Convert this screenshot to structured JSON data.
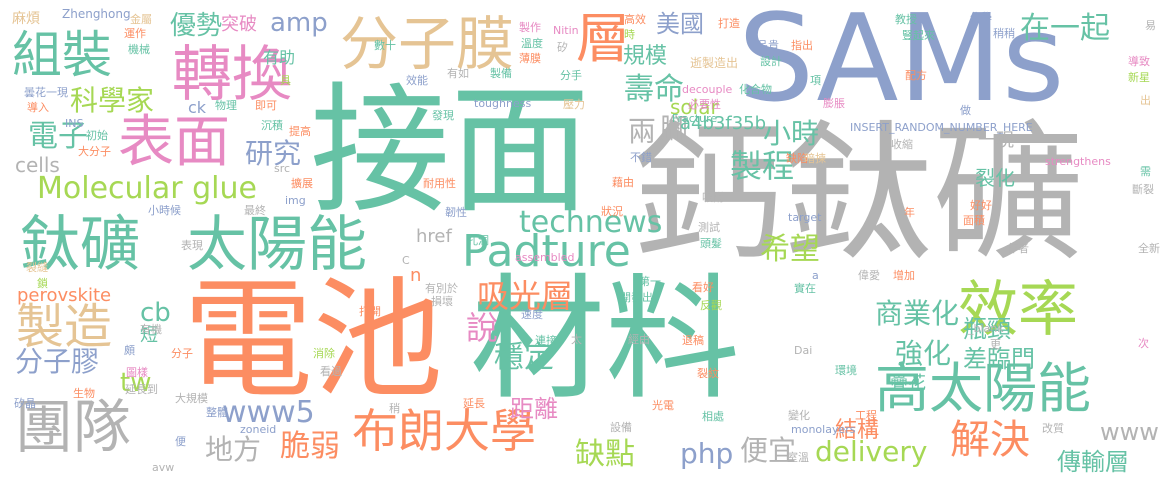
{
  "words": [
    {
      "text": "接面",
      "color": "#66c2a5"
    },
    {
      "text": "電池",
      "color": "#fc8d62"
    },
    {
      "text": "材料",
      "color": "#66c2a5"
    },
    {
      "text": "鈣鈦礦",
      "color": "#b3b3b3"
    },
    {
      "text": "SAMs",
      "color": "#8da0cb"
    },
    {
      "text": "表面",
      "color": "#e78ac3"
    },
    {
      "text": "轉換",
      "color": "#e78ac3"
    },
    {
      "text": "分子膜",
      "color": "#e5c494"
    },
    {
      "text": "組裝",
      "color": "#66c2a5"
    },
    {
      "text": "層",
      "color": "#fc8d62"
    },
    {
      "text": "鈦礦",
      "color": "#66c2a5"
    },
    {
      "text": "太陽能",
      "color": "#66c2a5"
    },
    {
      "text": "Molecular glue",
      "color": "#a6d854"
    },
    {
      "text": "Padture",
      "color": "#66c2a5"
    },
    {
      "text": "效率",
      "color": "#a6d854"
    },
    {
      "text": "高太陽能",
      "color": "#66c2a5"
    },
    {
      "text": "團隊",
      "color": "#b3b3b3"
    },
    {
      "text": "布朗大學",
      "color": "#fc8d62"
    },
    {
      "text": "製造",
      "color": "#e5c494"
    },
    {
      "text": "解決",
      "color": "#fc8d62"
    },
    {
      "text": "優勢",
      "color": "#66c2a5"
    },
    {
      "text": "amp",
      "color": "#8da0cb"
    },
    {
      "text": "在一起",
      "color": "#66c2a5"
    },
    {
      "text": "美國",
      "color": "#8da0cb"
    },
    {
      "text": "壽命",
      "color": "#66c2a5"
    },
    {
      "text": "科學家",
      "color": "#a6d854"
    },
    {
      "text": "電子",
      "color": "#66c2a5"
    },
    {
      "text": "研究",
      "color": "#8da0cb"
    },
    {
      "text": "製程",
      "color": "#66c2a5"
    },
    {
      "text": "小時",
      "color": "#66c2a5"
    },
    {
      "text": "兩",
      "color": "#b3b3b3"
    },
    {
      "text": "腳",
      "color": "#b3b3b3"
    },
    {
      "text": "technews",
      "color": "#66c2a5"
    },
    {
      "text": "希望",
      "color": "#a6d854"
    },
    {
      "text": "吸光層",
      "color": "#fc8d62"
    },
    {
      "text": "說",
      "color": "#e78ac3"
    },
    {
      "text": "穩定",
      "color": "#66c2a5"
    },
    {
      "text": "商業化",
      "color": "#66c2a5"
    },
    {
      "text": "強化",
      "color": "#66c2a5"
    },
    {
      "text": "瓶頸",
      "color": "#66c2a5"
    },
    {
      "text": "差臨門",
      "color": "#66c2a5"
    },
    {
      "text": "分子膠",
      "color": "#8da0cb"
    },
    {
      "text": "tw",
      "color": "#a6d854"
    },
    {
      "text": "cb",
      "color": "#66c2a5"
    },
    {
      "text": "www5",
      "color": "#8da0cb"
    },
    {
      "text": "地方",
      "color": "#b3b3b3"
    },
    {
      "text": "脆弱",
      "color": "#fc8d62"
    },
    {
      "text": "缺點",
      "color": "#a6d854"
    },
    {
      "text": "php",
      "color": "#8da0cb"
    },
    {
      "text": "便宜",
      "color": "#b3b3b3"
    },
    {
      "text": "delivery",
      "color": "#a6d854"
    },
    {
      "text": "結構",
      "color": "#fc8d62"
    },
    {
      "text": "傳輸層",
      "color": "#66c2a5"
    },
    {
      "text": "www",
      "color": "#b3b3b3"
    },
    {
      "text": "perovskite",
      "color": "#fc8d62"
    },
    {
      "text": "cells",
      "color": "#b3b3b3"
    },
    {
      "text": "solar",
      "color": "#a6d854"
    },
    {
      "text": "規模",
      "color": "#66c2a5"
    },
    {
      "text": "突破",
      "color": "#e78ac3"
    },
    {
      "text": "有助",
      "color": "#66c2a5"
    },
    {
      "text": "a4b3f35b",
      "color": "#66c2a5"
    },
    {
      "text": "裂化",
      "color": "#66c2a5"
    },
    {
      "text": "一現",
      "color": "#b3b3b3"
    },
    {
      "text": "疊花",
      "color": "#66c2a5"
    },
    {
      "text": "ck",
      "color": "#8da0cb"
    },
    {
      "text": "href",
      "color": "#b3b3b3"
    },
    {
      "text": "n",
      "color": "#fc8d62"
    },
    {
      "text": "距離",
      "color": "#e78ac3"
    },
    {
      "text": "短",
      "color": "#66c2a5"
    },
    {
      "text": "麻煩",
      "color": "#e5c494"
    },
    {
      "text": "Zhenghong",
      "color": "#8da0cb"
    },
    {
      "text": "金屬",
      "color": "#e5c494"
    },
    {
      "text": "運作",
      "color": "#fc8d62"
    },
    {
      "text": "機械",
      "color": "#66c2a5"
    },
    {
      "text": "數十",
      "color": "#66c2a5"
    },
    {
      "text": "製作",
      "color": "#e78ac3"
    },
    {
      "text": "溫度",
      "color": "#66c2a5"
    },
    {
      "text": "薄膜",
      "color": "#fc8d62"
    },
    {
      "text": "Nitin",
      "color": "#e78ac3"
    },
    {
      "text": "矽",
      "color": "#b3b3b3"
    },
    {
      "text": "高效",
      "color": "#fc8d62"
    },
    {
      "text": "時",
      "color": "#a6d854"
    },
    {
      "text": "打造",
      "color": "#fc8d62"
    },
    {
      "text": "品貴",
      "color": "#8da0cb"
    },
    {
      "text": "設計",
      "color": "#66c2a5"
    },
    {
      "text": "指出",
      "color": "#fc8d62"
    },
    {
      "text": "教授",
      "color": "#66c2a5"
    },
    {
      "text": "豎起來",
      "color": "#66c2a5"
    },
    {
      "text": "化學",
      "color": "#8da0cb"
    },
    {
      "text": "稍稍",
      "color": "#8da0cb"
    },
    {
      "text": "導致",
      "color": "#e78ac3"
    },
    {
      "text": "新星",
      "color": "#a6d854"
    },
    {
      "text": "易",
      "color": "#b3b3b3"
    },
    {
      "text": "出",
      "color": "#e5c494"
    },
    {
      "text": "逝製造出",
      "color": "#e5c494"
    },
    {
      "text": "有如",
      "color": "#b3b3b3"
    },
    {
      "text": "製備",
      "color": "#66c2a5"
    },
    {
      "text": "分手",
      "color": "#66c2a5"
    },
    {
      "text": "效能",
      "color": "#8da0cb"
    },
    {
      "text": "具",
      "color": "#a6d854"
    },
    {
      "text": "曇花一現",
      "color": "#8da0cb"
    },
    {
      "text": "導入",
      "color": "#fc8d62"
    },
    {
      "text": "物理",
      "color": "#66c2a5"
    },
    {
      "text": "即可",
      "color": "#fc8d62"
    },
    {
      "text": "decouple",
      "color": "#e78ac3"
    },
    {
      "text": "必要性",
      "color": "#e78ac3"
    },
    {
      "text": "化合物",
      "color": "#66c2a5"
    },
    {
      "text": "膨脹",
      "color": "#e78ac3"
    },
    {
      "text": "配方",
      "color": "#fc8d62"
    },
    {
      "text": "項",
      "color": "#66c2a5"
    },
    {
      "text": "做",
      "color": "#8da0cb"
    },
    {
      "text": "toughness",
      "color": "#8da0cb"
    },
    {
      "text": "壓力",
      "color": "#e5c494"
    },
    {
      "text": "Fracture",
      "color": "#66c2a5"
    },
    {
      "text": "INSERT_RANDOM_NUMBER_HERE",
      "color": "#8da0cb"
    },
    {
      "text": "沉積",
      "color": "#66c2a5"
    },
    {
      "text": "提高",
      "color": "#fc8d62"
    },
    {
      "text": "INS",
      "color": "#8da0cb"
    },
    {
      "text": "初始",
      "color": "#66c2a5"
    },
    {
      "text": "大分子",
      "color": "#fc8d62"
    },
    {
      "text": "發現",
      "color": "#66c2a5"
    },
    {
      "text": "src",
      "color": "#b3b3b3"
    },
    {
      "text": "不錯",
      "color": "#8da0cb"
    },
    {
      "text": "缺陷",
      "color": "#fc8d62"
    },
    {
      "text": "暗揀",
      "color": "#e5c494"
    },
    {
      "text": "收縮",
      "color": "#b3b3b3"
    },
    {
      "text": "strengthens",
      "color": "#e78ac3"
    },
    {
      "text": "需",
      "color": "#66c2a5"
    },
    {
      "text": "斷裂",
      "color": "#b3b3b3"
    },
    {
      "text": "藉由",
      "color": "#fc8d62"
    },
    {
      "text": "耐用性",
      "color": "#fc8d62"
    },
    {
      "text": "擴展",
      "color": "#fc8d62"
    },
    {
      "text": "小時候",
      "color": "#8da0cb"
    },
    {
      "text": "最終",
      "color": "#b3b3b3"
    },
    {
      "text": "img",
      "color": "#8da0cb"
    },
    {
      "text": "韌性",
      "color": "#8da0cb"
    },
    {
      "text": "狀況",
      "color": "#fc8d62"
    },
    {
      "text": "吸附",
      "color": "#b3b3b3"
    },
    {
      "text": "target",
      "color": "#8da0cb"
    },
    {
      "text": "年",
      "color": "#fc8d62"
    },
    {
      "text": "好好",
      "color": "#fc8d62"
    },
    {
      "text": "面積",
      "color": "#fc8d62"
    },
    {
      "text": "表現",
      "color": "#b3b3b3"
    },
    {
      "text": "孔洞",
      "color": "#66c2a5"
    },
    {
      "text": "C",
      "color": "#b3b3b3"
    },
    {
      "text": "assembled",
      "color": "#e78ac3"
    },
    {
      "text": "測試",
      "color": "#b3b3b3"
    },
    {
      "text": "頭髮",
      "color": "#66c2a5"
    },
    {
      "text": "作者",
      "color": "#b3b3b3"
    },
    {
      "text": "全新",
      "color": "#b3b3b3"
    },
    {
      "text": "裂縫",
      "color": "#e5c494"
    },
    {
      "text": "鎖",
      "color": "#a6d854"
    },
    {
      "text": "有別於",
      "color": "#b3b3b3"
    },
    {
      "text": "第一",
      "color": "#66c2a5"
    },
    {
      "text": "a",
      "color": "#8da0cb"
    },
    {
      "text": "偉愛",
      "color": "#b3b3b3"
    },
    {
      "text": "增加",
      "color": "#fc8d62"
    },
    {
      "text": "實在",
      "color": "#66c2a5"
    },
    {
      "text": "看好",
      "color": "#fc8d62"
    },
    {
      "text": "損壞",
      "color": "#b3b3b3"
    },
    {
      "text": "開發出",
      "color": "#66c2a5"
    },
    {
      "text": "反觀",
      "color": "#a6d854"
    },
    {
      "text": "速度",
      "color": "#8da0cb"
    },
    {
      "text": "打開",
      "color": "#fc8d62"
    },
    {
      "text": "_blank",
      "color": "#b3b3b3"
    },
    {
      "text": "有機",
      "color": "#b3b3b3"
    },
    {
      "text": "連接",
      "color": "#66c2a5"
    },
    {
      "text": "太",
      "color": "#b3b3b3"
    },
    {
      "text": "經由",
      "color": "#b3b3b3"
    },
    {
      "text": "退稿",
      "color": "#fc8d62"
    },
    {
      "text": "Dai",
      "color": "#b3b3b3"
    },
    {
      "text": "更",
      "color": "#b3b3b3"
    },
    {
      "text": "次",
      "color": "#e78ac3"
    },
    {
      "text": "頗",
      "color": "#8da0cb"
    },
    {
      "text": "分子",
      "color": "#fc8d62"
    },
    {
      "text": "消除",
      "color": "#a6d854"
    },
    {
      "text": "裂紋",
      "color": "#fc8d62"
    },
    {
      "text": "環境",
      "color": "#66c2a5"
    },
    {
      "text": "圖樣",
      "color": "#e78ac3"
    },
    {
      "text": "看過",
      "color": "#b3b3b3"
    },
    {
      "text": "生物",
      "color": "#fc8d62"
    },
    {
      "text": "延長到",
      "color": "#b3b3b3"
    },
    {
      "text": "大規模",
      "color": "#b3b3b3"
    },
    {
      "text": "矽晶",
      "color": "#8da0cb"
    },
    {
      "text": "稍",
      "color": "#b3b3b3"
    },
    {
      "text": "延長",
      "color": "#fc8d62"
    },
    {
      "text": "光電",
      "color": "#fc8d62"
    },
    {
      "text": "相處",
      "color": "#66c2a5"
    },
    {
      "text": "變化",
      "color": "#b3b3b3"
    },
    {
      "text": "工程",
      "color": "#fc8d62"
    },
    {
      "text": "整體",
      "color": "#8da0cb"
    },
    {
      "text": "zoneid",
      "color": "#8da0cb"
    },
    {
      "text": "設備",
      "color": "#b3b3b3"
    },
    {
      "text": "monolayers",
      "color": "#8da0cb"
    },
    {
      "text": "改質",
      "color": "#b3b3b3"
    },
    {
      "text": "便",
      "color": "#8da0cb"
    },
    {
      "text": "avw",
      "color": "#b3b3b3"
    },
    {
      "text": "室溫",
      "color": "#b3b3b3"
    }
  ]
}
